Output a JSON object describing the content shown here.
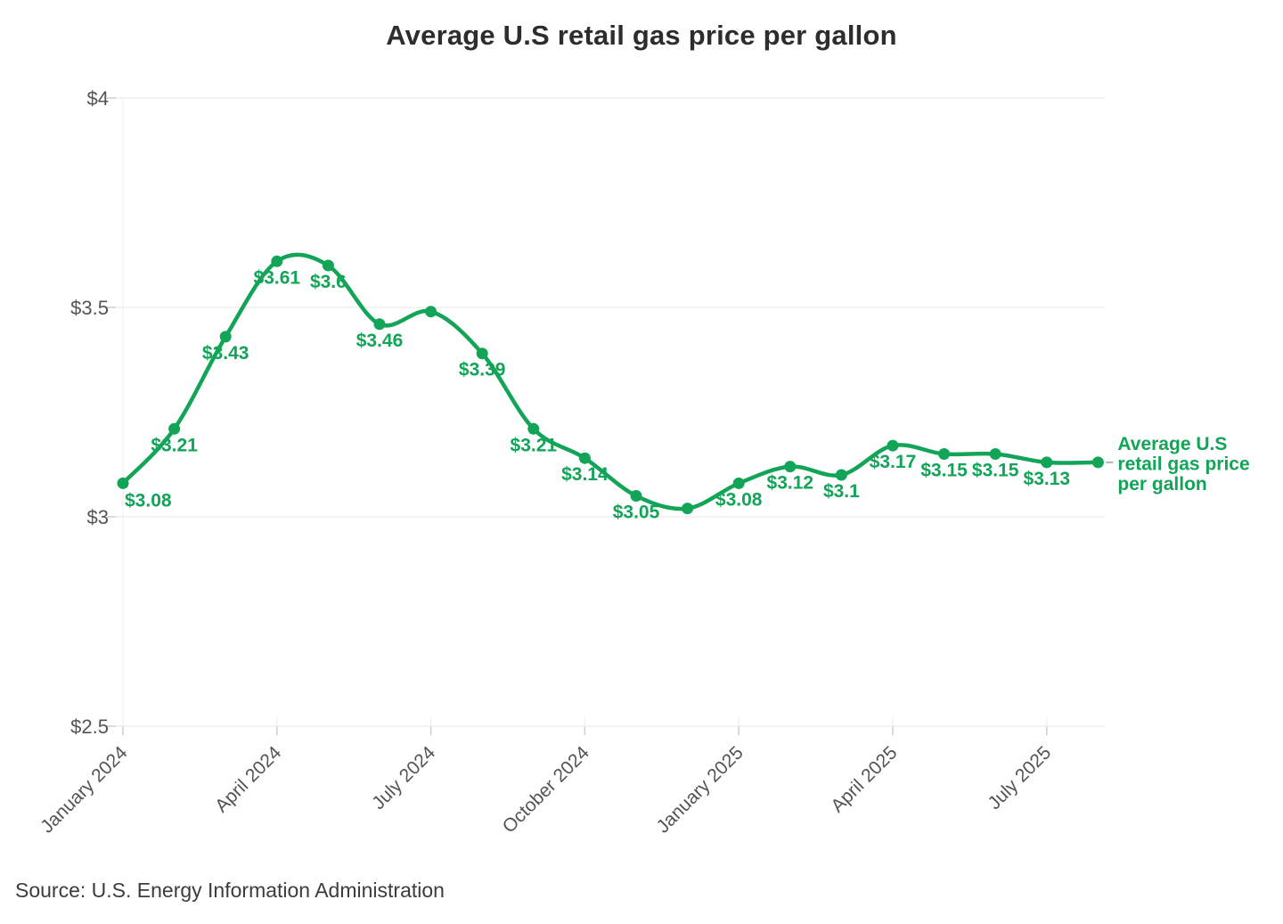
{
  "chart_data": {
    "type": "line",
    "title": "Average U.S retail gas price per gallon",
    "source": "Source: U.S. Energy Information Administration",
    "x": [
      "January 2024",
      "February 2024",
      "March 2024",
      "April 2024",
      "May 2024",
      "June 2024",
      "July 2024",
      "August 2024",
      "September 2024",
      "October 2024",
      "November 2024",
      "December 2024",
      "January 2025",
      "February 2025",
      "March 2025",
      "April 2025",
      "May 2025",
      "June 2025",
      "July 2025",
      "August 2025"
    ],
    "values": [
      3.08,
      3.21,
      3.43,
      3.61,
      3.6,
      3.46,
      3.49,
      3.39,
      3.21,
      3.14,
      3.05,
      3.02,
      3.08,
      3.12,
      3.1,
      3.17,
      3.15,
      3.15,
      3.13,
      3.13
    ],
    "point_labels": [
      "$3.08",
      "$3.21",
      "$3.43",
      "$3.61",
      "$3.6",
      "$3.46",
      null,
      "$3.39",
      "$3.21",
      "$3.14",
      "$3.05",
      null,
      "$3.08",
      "$3.12",
      "$3.1",
      "$3.17",
      "$3.15",
      "$3.15",
      "$3.13",
      null
    ],
    "x_ticks": [
      {
        "index": 0,
        "label": "January 2024"
      },
      {
        "index": 3,
        "label": "April 2024"
      },
      {
        "index": 6,
        "label": "July 2024"
      },
      {
        "index": 9,
        "label": "October 2024"
      },
      {
        "index": 12,
        "label": "January 2025"
      },
      {
        "index": 15,
        "label": "April 2025"
      },
      {
        "index": 18,
        "label": "July 2025"
      }
    ],
    "y_ticks": [
      {
        "value": 4,
        "label": "$4"
      },
      {
        "value": 3.5,
        "label": "$3.5"
      },
      {
        "value": 3,
        "label": "$3"
      },
      {
        "value": 2.5,
        "label": "$2.5"
      }
    ],
    "ylim": [
      2.5,
      4
    ],
    "grid": true,
    "legend_position": "right of last point",
    "series_label_lines": [
      "Average U.S",
      "retail gas price",
      "per gallon"
    ],
    "colors": {
      "line": "#12a457",
      "axis_text": "#545454",
      "grid_h": "#e9e9e9",
      "grid_v": "#efefef",
      "tick": "#cdcdcd",
      "legend_dash": "#b3b3b3",
      "title_text": "#2d2d2d",
      "source_text": "#3c3c3c"
    }
  }
}
